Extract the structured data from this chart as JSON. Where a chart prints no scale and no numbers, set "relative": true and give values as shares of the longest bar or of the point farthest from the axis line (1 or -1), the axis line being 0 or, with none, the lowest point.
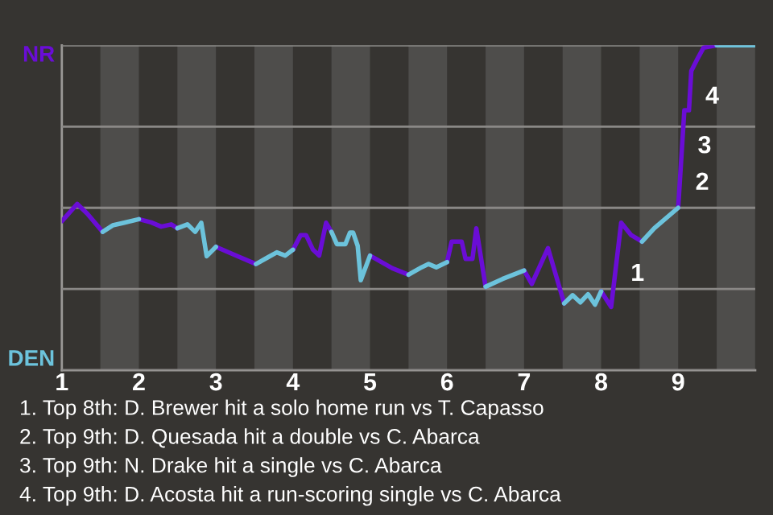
{
  "chart_data": {
    "type": "line",
    "x": [
      1.0,
      1.2,
      1.33,
      1.53,
      1.66,
      1.81,
      2.0,
      2.16,
      2.29,
      2.42,
      2.5,
      2.63,
      2.73,
      2.81,
      2.88,
      3.0,
      3.29,
      3.52,
      3.67,
      3.79,
      3.9,
      4.0,
      4.1,
      4.17,
      4.26,
      4.34,
      4.43,
      4.5,
      4.57,
      4.68,
      4.74,
      4.78,
      4.84,
      4.88,
      5.0,
      5.29,
      5.5,
      5.67,
      5.76,
      5.86,
      6.0,
      6.06,
      6.19,
      6.24,
      6.33,
      6.38,
      6.5,
      6.72,
      7.0,
      7.1,
      7.31,
      7.52,
      7.63,
      7.73,
      7.83,
      7.92,
      8.0,
      8.13,
      8.26,
      8.39,
      8.53,
      8.69,
      9.0,
      9.08,
      9.14,
      9.17,
      9.24,
      9.33,
      9.5,
      10.0
    ],
    "series": [
      {
        "name": "NR",
        "color": "#6a0dd6",
        "values": [
          0.459,
          0.512,
          0.482,
          0.426,
          null,
          null,
          0.465,
          0.455,
          0.442,
          0.449,
          0.437,
          null,
          null,
          null,
          null,
          0.38,
          0.35,
          0.327,
          null,
          null,
          null,
          0.371,
          0.416,
          0.416,
          0.371,
          0.353,
          0.454,
          0.426,
          null,
          null,
          null,
          null,
          null,
          null,
          0.353,
          0.314,
          0.294,
          null,
          null,
          null,
          0.333,
          0.396,
          0.396,
          0.343,
          0.343,
          0.437,
          0.257,
          null,
          0.307,
          0.266,
          0.376,
          0.206,
          null,
          null,
          null,
          null,
          0.243,
          0.195,
          0.454,
          0.416,
          0.396,
          null,
          0.5,
          0.8,
          0.8,
          0.921,
          0.954,
          0.993,
          1,
          null
        ]
      },
      {
        "name": "DEN",
        "color": "#6cc3dc",
        "values": [
          null,
          null,
          null,
          0.426,
          0.446,
          0.454,
          0.465,
          null,
          null,
          null,
          0.437,
          0.449,
          0.426,
          0.454,
          0.351,
          0.38,
          null,
          0.327,
          0.347,
          0.363,
          0.353,
          0.371,
          null,
          null,
          null,
          null,
          null,
          0.426,
          0.388,
          0.388,
          0.424,
          0.424,
          0.383,
          0.277,
          0.353,
          null,
          0.294,
          0.317,
          0.327,
          0.317,
          0.333,
          null,
          null,
          null,
          null,
          null,
          0.257,
          0.281,
          0.307,
          null,
          null,
          0.206,
          0.231,
          0.209,
          0.234,
          0.202,
          0.243,
          null,
          null,
          null,
          0.396,
          0.437,
          0.5,
          null,
          null,
          null,
          null,
          null,
          1,
          1
        ]
      }
    ],
    "relative": true,
    "xlim": [
      1,
      10
    ],
    "xticks": [
      1,
      2,
      3,
      4,
      5,
      6,
      7,
      8,
      9
    ],
    "grid": "y",
    "legend": false,
    "bands": [
      {
        "axis": "x",
        "from": 1.5,
        "to": 2,
        "color": "#4e4d4b"
      },
      {
        "axis": "x",
        "from": 2.5,
        "to": 3,
        "color": "#4e4d4b"
      },
      {
        "axis": "x",
        "from": 3.5,
        "to": 4,
        "color": "#4e4d4b"
      },
      {
        "axis": "x",
        "from": 4.5,
        "to": 5,
        "color": "#4e4d4b"
      },
      {
        "axis": "x",
        "from": 5.5,
        "to": 6,
        "color": "#4e4d4b"
      },
      {
        "axis": "x",
        "from": 6.5,
        "to": 7,
        "color": "#4e4d4b"
      },
      {
        "axis": "x",
        "from": 7.5,
        "to": 8,
        "color": "#4e4d4b"
      },
      {
        "axis": "x",
        "from": 8.5,
        "to": 9,
        "color": "#4e4d4b"
      },
      {
        "axis": "x",
        "from": 9.5,
        "to": 10,
        "color": "#4e4d4b"
      }
    ],
    "annotations": [
      {
        "text": "1",
        "x": 8.18,
        "y": 0.295
      },
      {
        "text": "2",
        "x": 9.02,
        "y": 0.575
      },
      {
        "text": "3",
        "x": 9.05,
        "y": 0.688
      },
      {
        "text": "4",
        "x": 9.15,
        "y": 0.84
      },
      "1. Top 8th: D. Brewer hit a solo home run vs T. Capasso",
      "2. Top 9th: D. Quesada hit a double vs C. Abarca",
      "3. Top 9th: N. Drake hit a single vs C. Abarca",
      "4. Top 9th: D. Acosta hit a run-scoring single vs C. Abarca"
    ]
  }
}
